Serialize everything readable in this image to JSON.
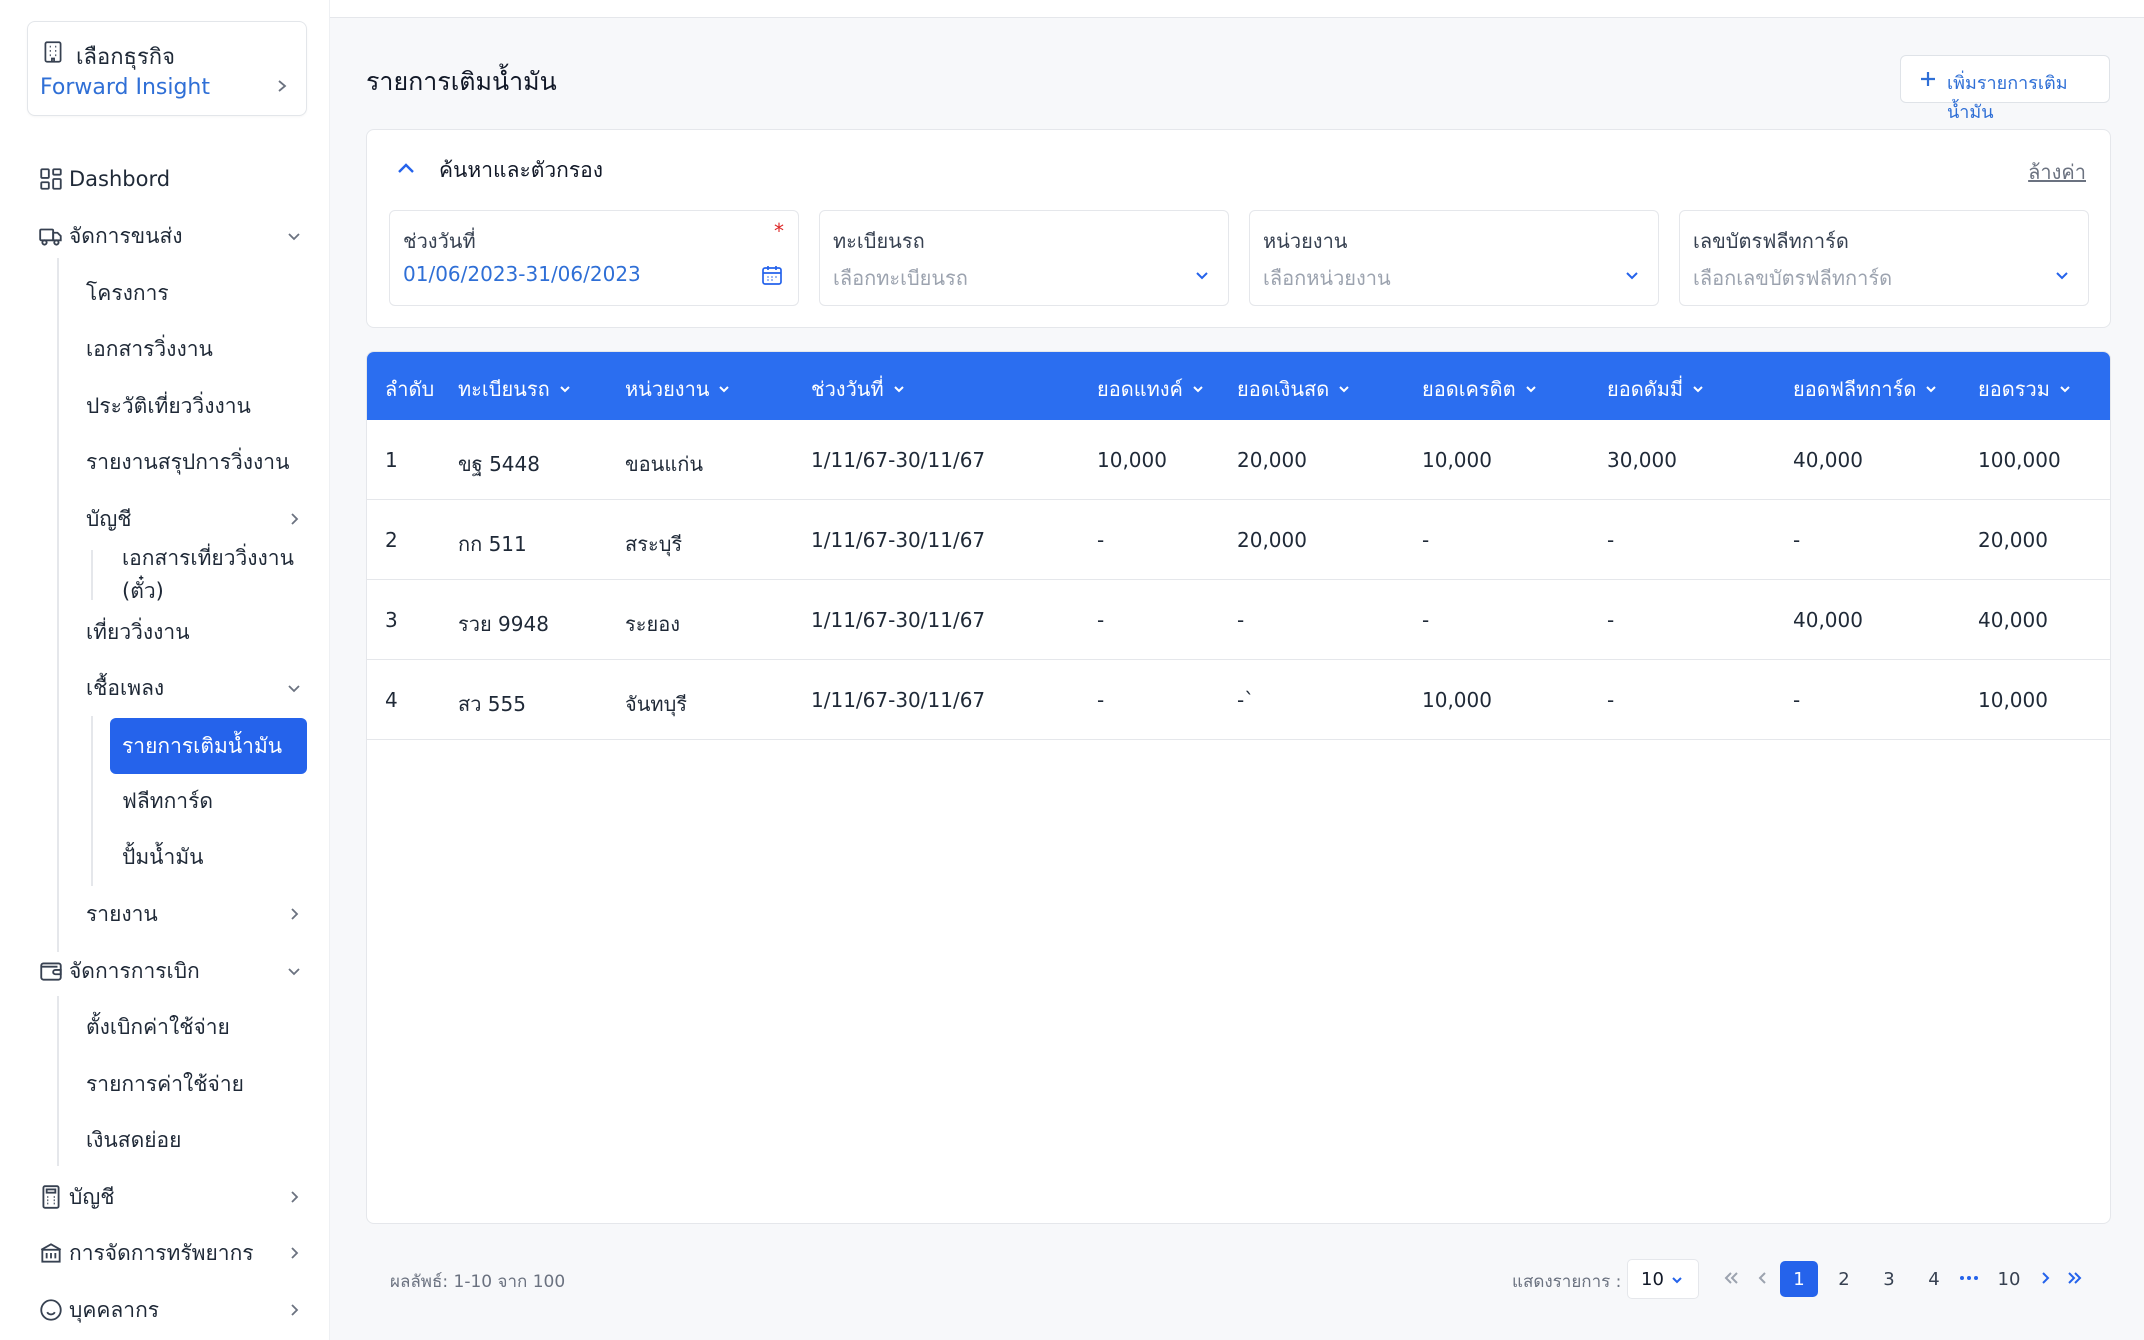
{
  "business": {
    "label": "เลือกธุรกิจ",
    "name": "Forward Insight"
  },
  "sidebar": {
    "items": [
      {
        "label": "Dashbord"
      },
      {
        "label": "จัดการขนส่ง"
      },
      {
        "label": "โครงการ"
      },
      {
        "label": "เอกสารวิ่งงาน"
      },
      {
        "label": "ประวัติเที่ยววิ่งงาน"
      },
      {
        "label": "รายงานสรุปการวิ่งงาน"
      },
      {
        "label": "บัญชี"
      },
      {
        "label": "เอกสารเที่ยววิ่งงาน (ตั๋ว)"
      },
      {
        "label": "เที่ยววิ่งงาน"
      },
      {
        "label": "เชื้อเพลง"
      },
      {
        "label": "รายการเติมน้ำมัน"
      },
      {
        "label": "ฟลีทการ์ด"
      },
      {
        "label": "ปั้มน้ำมัน"
      },
      {
        "label": "รายงาน"
      },
      {
        "label": "จัดการการเบิก"
      },
      {
        "label": "ตั้งเบิกค่าใช้จ่าย"
      },
      {
        "label": "รายการค่าใช้จ่าย"
      },
      {
        "label": "เงินสดย่อย"
      },
      {
        "label": "บัญชี"
      },
      {
        "label": "การจัดการทรัพยากร"
      },
      {
        "label": "บุคคลากร"
      }
    ]
  },
  "page": {
    "title": "รายการเติมน้ำมัน",
    "add_button": "เพิ่มรายการเติมน้ำมัน"
  },
  "filter": {
    "title": "ค้นหาและตัวกรอง",
    "clear": "ล้างค่า",
    "date": {
      "label": "ช่วงวันที่",
      "required": "*",
      "value": "01/06/2023-31/06/2023"
    },
    "plate": {
      "label": "ทะเบียนรถ",
      "placeholder": "เลือกทะเบียนรถ"
    },
    "unit": {
      "label": "หน่วยงาน",
      "placeholder": "เลือกหน่วยงาน"
    },
    "fleetcard": {
      "label": "เลขบัตรฟลีทการ์ด",
      "placeholder": "เลือกเลขบัตรฟลีทการ์ด"
    }
  },
  "table": {
    "columns": [
      "ลำดับ",
      "ทะเบียนรถ",
      "หน่วยงาน",
      "ช่วงวันที่",
      "ยอดแทงค์",
      "ยอดเงินสด",
      "ยอดเครดิต",
      "ยอดดัมมี่",
      "ยอดฟลีทการ์ด",
      "ยอดรวม"
    ],
    "rows": [
      [
        "1",
        "ขฐ 5448",
        "ขอนแก่น",
        "1/11/67-30/11/67",
        "10,000",
        "20,000",
        "10,000",
        "30,000",
        "40,000",
        "100,000"
      ],
      [
        "2",
        "กก 511",
        "สระบุรี",
        "1/11/67-30/11/67",
        "-",
        "20,000",
        "-",
        "-",
        "-",
        "20,000"
      ],
      [
        "3",
        "รวย 9948",
        "ระยอง",
        "1/11/67-30/11/67",
        "-",
        "-",
        "-",
        "-",
        "40,000",
        "40,000"
      ],
      [
        "4",
        "สว 555",
        "จันทบุรี",
        "1/11/67-30/11/67",
        "-",
        "-`",
        "10,000",
        "-",
        "-",
        "10,000"
      ]
    ]
  },
  "footer": {
    "result": "ผลลัพธ์: 1-10 จาก 100",
    "per_page_label": "แสดงรายการ :",
    "per_page_value": "10",
    "pages": [
      "1",
      "2",
      "3",
      "4",
      "10"
    ],
    "current_page": "1"
  },
  "colors": {
    "accent": "#2563eb",
    "header": "#2b6ef0",
    "link": "#2f6fd6"
  }
}
